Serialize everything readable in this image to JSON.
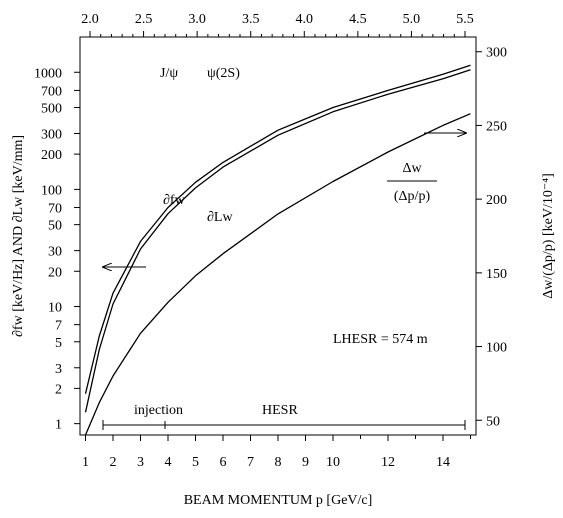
{
  "chart_data": {
    "type": "line",
    "x_axis": {
      "label": "BEAM MOMENTUM p [GeV/c]",
      "range": [
        0.8,
        15.2
      ],
      "ticks": [
        "1",
        "2",
        "3",
        "4",
        "5",
        "6",
        "7",
        "8",
        "9",
        "10",
        "12",
        "14"
      ]
    },
    "top_axis": {
      "label": "",
      "ticks": [
        "2.0",
        "2.5",
        "3.0",
        "3.5",
        "4.0",
        "4.5",
        "5.0",
        "5.5"
      ]
    },
    "y_left": {
      "label": "∂fw [keV/Hz]  AND  ∂Lw [keV/mm]",
      "scale": "log",
      "range": [
        0.8,
        2000
      ],
      "ticks": [
        "1",
        "2",
        "3",
        "5",
        "7",
        "10",
        "20",
        "30",
        "50",
        "70",
        "100",
        "200",
        "300",
        "500",
        "700",
        "1000"
      ]
    },
    "y_right": {
      "label": "Δw/(Δp/p)  [keV/10⁻⁴]",
      "range": [
        40,
        310
      ],
      "ticks": [
        "50",
        "100",
        "150",
        "200",
        "250",
        "300"
      ]
    },
    "series": [
      {
        "name": "∂fw",
        "axis": "left",
        "x": [
          1.0,
          1.5,
          2.0,
          3.0,
          4.0,
          5.0,
          6.0,
          8.0,
          10.0,
          12.0,
          14.0,
          15.0
        ],
        "y": [
          1.8,
          5.6,
          13,
          36,
          70,
          115,
          170,
          320,
          500,
          700,
          960,
          1150
        ]
      },
      {
        "name": "∂Lw",
        "axis": "left",
        "x": [
          1.0,
          1.5,
          2.0,
          3.0,
          4.0,
          5.0,
          6.0,
          8.0,
          10.0,
          12.0,
          14.0,
          15.0
        ],
        "y": [
          1.25,
          4.3,
          10.5,
          31,
          62,
          103,
          155,
          290,
          460,
          650,
          880,
          1050
        ]
      },
      {
        "name": "Δw/(Δp/p)",
        "axis": "right",
        "x": [
          1.0,
          1.5,
          2.0,
          3.0,
          4.0,
          5.0,
          6.0,
          8.0,
          10.0,
          12.0,
          14.0,
          15.0
        ],
        "y": [
          40,
          62,
          80,
          109,
          130,
          148,
          163,
          190,
          212,
          232,
          250,
          258
        ]
      }
    ],
    "annotations": {
      "jpsi": "J/ψ",
      "psi2s": "ψ(2S)",
      "dfw": "∂fw",
      "dlw": "∂Lw",
      "dw_num": "Δw",
      "dw_den": "(Δp/p)",
      "hesr_length": "LHESR = 574  m",
      "injection": "injection",
      "hesr": "HESR"
    },
    "grid": false
  }
}
